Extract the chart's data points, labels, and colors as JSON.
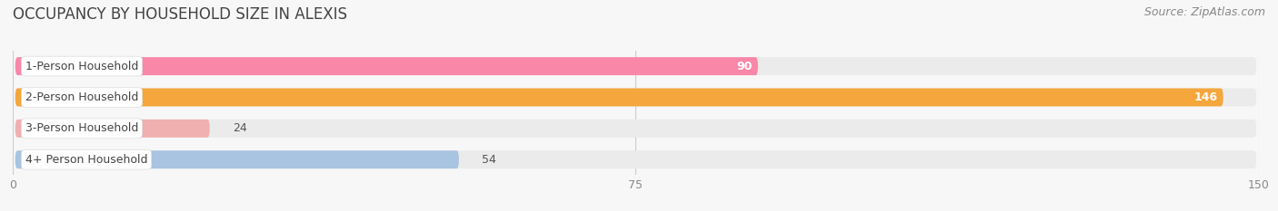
{
  "title": "OCCUPANCY BY HOUSEHOLD SIZE IN ALEXIS",
  "source": "Source: ZipAtlas.com",
  "categories": [
    "1-Person Household",
    "2-Person Household",
    "3-Person Household",
    "4+ Person Household"
  ],
  "values": [
    90,
    146,
    24,
    54
  ],
  "bar_colors": [
    "#f987a8",
    "#f5a63c",
    "#f0b0b0",
    "#a8c4e0"
  ],
  "dot_colors": [
    "#f987a8",
    "#f5a63c",
    "#f0b0b0",
    "#a8c4e0"
  ],
  "bar_bg_color": "#ebebeb",
  "xlim": [
    0,
    150
  ],
  "xticks": [
    0,
    75,
    150
  ],
  "label_bg_color": "#ffffff",
  "title_fontsize": 12,
  "source_fontsize": 9,
  "tick_fontsize": 9,
  "bar_label_fontsize": 9,
  "cat_label_fontsize": 9,
  "background_color": "#f7f7f7"
}
